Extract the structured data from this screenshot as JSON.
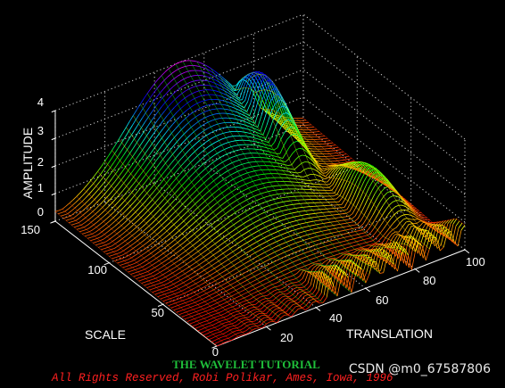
{
  "chart_data": {
    "type": "surface",
    "zlabel": "AMPLITUDE",
    "xlabel": "TRANSLATION",
    "ylabel": "SCALE",
    "zlim": [
      0,
      4
    ],
    "xlim": [
      0,
      100
    ],
    "ylim": [
      0,
      150
    ],
    "z_ticks": [
      "0",
      "1",
      "2",
      "3",
      "4"
    ],
    "x_ticks": [
      "20",
      "40",
      "60",
      "80",
      "100"
    ],
    "y_ticks": [
      "0",
      "50",
      "100",
      "150"
    ],
    "grid": true,
    "colormap": "hsv",
    "series": [
      {
        "ridge_scale": 150,
        "peak_translation": 50,
        "peak_amplitude": 4
      },
      {
        "ridge_scale": 130,
        "peak_translation": 75,
        "peak_amplitude": 3.3
      }
    ]
  },
  "footer": {
    "title": "THE WAVELET TUTORIAL",
    "copyright": "All Rights Reserved, Robi Polikar, Ames, Iowa, 1996"
  },
  "watermark": "CSDN @m0_67587806",
  "colors": {
    "background": "#000000",
    "title_green": "#1fbf3a",
    "copyright_red": "#ff2020"
  }
}
